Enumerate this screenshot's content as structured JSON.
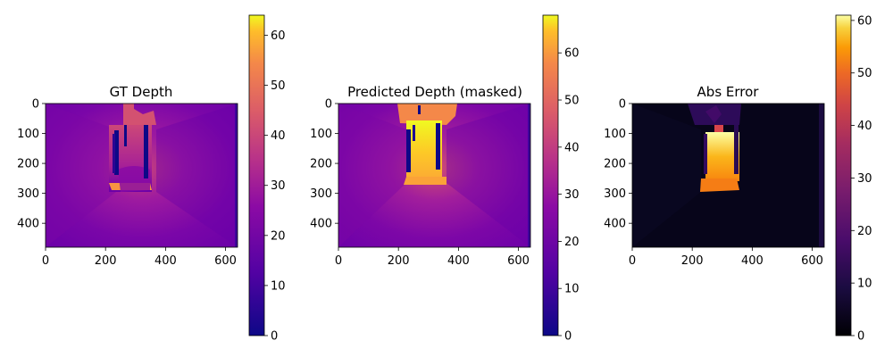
{
  "chart_data": [
    {
      "type": "heatmap",
      "title": "GT Depth",
      "xticks": [
        0,
        200,
        400,
        600
      ],
      "yticks": [
        0,
        100,
        200,
        300,
        400
      ],
      "xlim": [
        0,
        640
      ],
      "ylim": [
        480,
        0
      ],
      "colormap": "plasma",
      "colorbar": {
        "range": [
          0,
          64
        ],
        "ticks": [
          0,
          10,
          20,
          30,
          40,
          50,
          60
        ]
      }
    },
    {
      "type": "heatmap",
      "title": "Predicted Depth (masked)",
      "xticks": [
        0,
        200,
        400,
        600
      ],
      "yticks": [
        0,
        100,
        200,
        300,
        400
      ],
      "xlim": [
        0,
        640
      ],
      "ylim": [
        480,
        0
      ],
      "colormap": "plasma",
      "colorbar": {
        "range": [
          0,
          68
        ],
        "ticks": [
          0,
          10,
          20,
          30,
          40,
          50,
          60
        ]
      }
    },
    {
      "type": "heatmap",
      "title": "Abs Error",
      "xticks": [
        0,
        200,
        400,
        600
      ],
      "yticks": [
        0,
        100,
        200,
        300,
        400
      ],
      "xlim": [
        0,
        640
      ],
      "ylim": [
        480,
        0
      ],
      "colormap": "inferno",
      "colorbar": {
        "range": [
          0,
          61
        ],
        "ticks": [
          0,
          10,
          20,
          30,
          40,
          50,
          60
        ]
      }
    }
  ]
}
